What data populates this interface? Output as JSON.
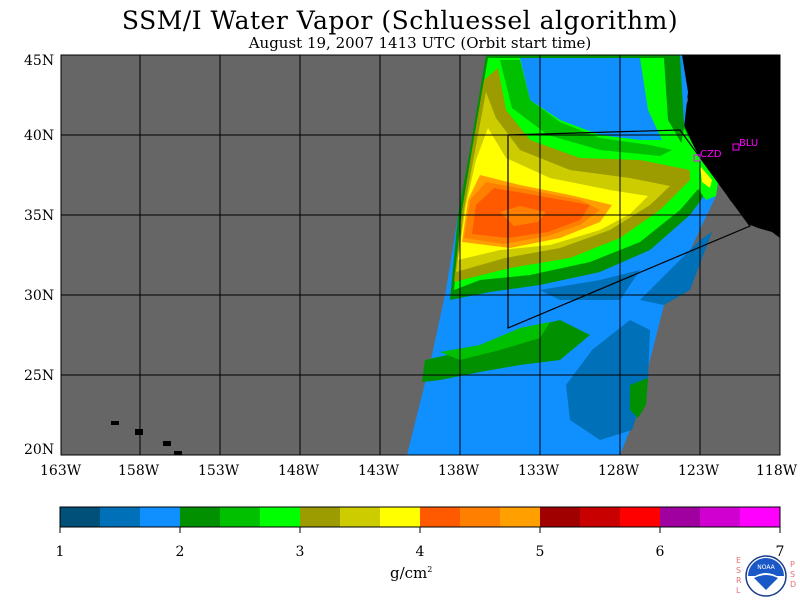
{
  "title": "SSM/I Water Vapor (Schluessel algorithm)",
  "subtitle": "August 19, 2007  1413 UTC  (Orbit start time)",
  "lat_labels": [
    "45N",
    "40N",
    "35N",
    "30N",
    "25N",
    "20N"
  ],
  "lon_labels": [
    "163W",
    "158W",
    "153W",
    "148W",
    "143W",
    "138W",
    "133W",
    "128W",
    "123W",
    "118W"
  ],
  "stations": [
    "CZD",
    "BLU"
  ],
  "colorbar": {
    "ticks": [
      "1",
      "2",
      "3",
      "4",
      "5",
      "6",
      "7"
    ],
    "units": "g/cm",
    "units_sup": "2",
    "colors": [
      "#00507a",
      "#0070b8",
      "#1090ff",
      "#009000",
      "#00c000",
      "#00ff00",
      "#9c9c00",
      "#cccc00",
      "#ffff00",
      "#ff5a00",
      "#ff8000",
      "#ffa000",
      "#a00000",
      "#c80000",
      "#ff0000",
      "#a000a0",
      "#d000d0",
      "#ff00ff"
    ]
  },
  "colors": {
    "no_data": "#666666",
    "land": "#000000",
    "station": "#ff00ff"
  },
  "logo": {
    "text": "NOAA",
    "left_letters": [
      "E",
      "S",
      "R",
      "L"
    ],
    "right_letters": [
      "P",
      "S",
      "D"
    ]
  }
}
